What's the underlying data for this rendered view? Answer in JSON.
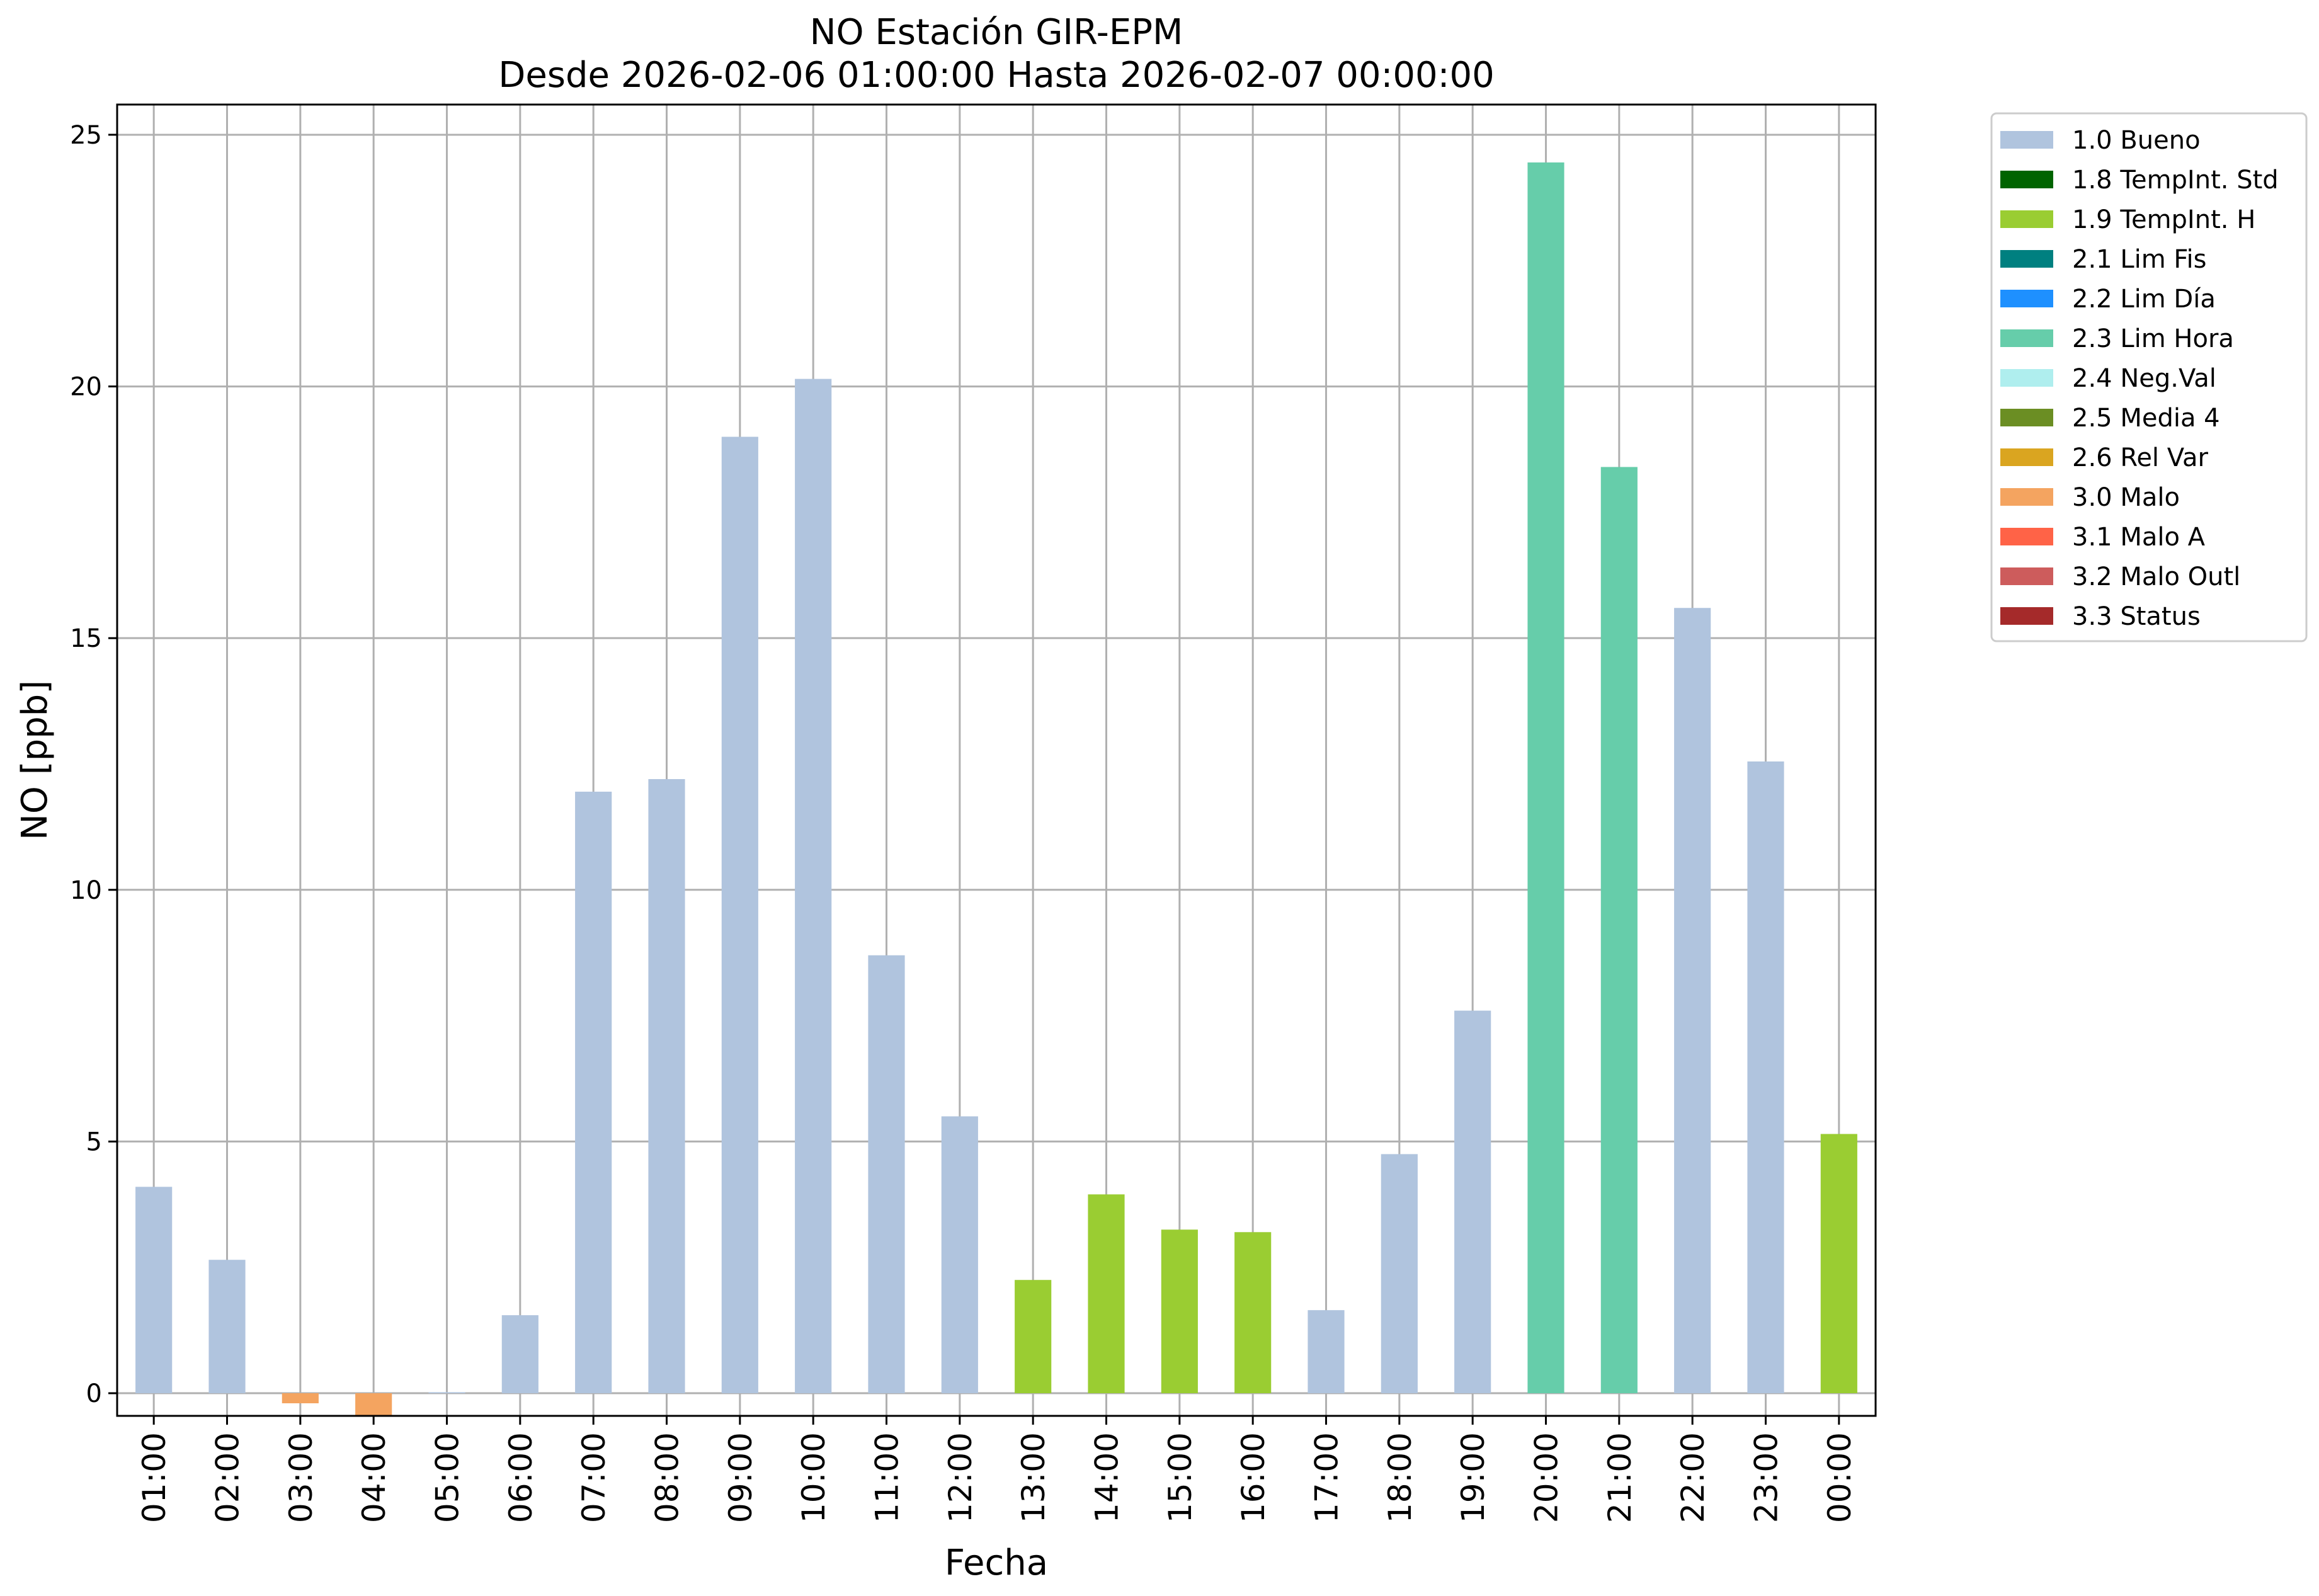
{
  "chart_data": {
    "type": "bar",
    "title": "NO Estación GIR-EPM",
    "subtitle": "Desde 2026-02-06 01:00:00 Hasta 2026-02-07 00:00:00",
    "xlabel": "Fecha",
    "ylabel": "NO [ppb]",
    "ylim": [
      -0.45,
      25.6
    ],
    "yticks": [
      0,
      5,
      10,
      15,
      20,
      25
    ],
    "grid": true,
    "legend_position": "outside-right-top",
    "categories": [
      "01:00",
      "02:00",
      "03:00",
      "04:00",
      "05:00",
      "06:00",
      "07:00",
      "08:00",
      "09:00",
      "10:00",
      "11:00",
      "12:00",
      "13:00",
      "14:00",
      "15:00",
      "16:00",
      "17:00",
      "18:00",
      "19:00",
      "20:00",
      "21:00",
      "22:00",
      "23:00",
      "00:00"
    ],
    "values": [
      4.1,
      2.65,
      -0.2,
      -0.45,
      0.02,
      1.55,
      11.95,
      12.2,
      19.0,
      20.15,
      8.7,
      5.5,
      2.25,
      3.95,
      3.25,
      3.2,
      1.65,
      4.75,
      7.6,
      24.45,
      18.4,
      15.6,
      12.55,
      5.15
    ],
    "flags": [
      "1.0 Bueno",
      "1.0 Bueno",
      "3.0 Malo",
      "3.0 Malo",
      "1.0 Bueno",
      "1.0 Bueno",
      "1.0 Bueno",
      "1.0 Bueno",
      "1.0 Bueno",
      "1.0 Bueno",
      "1.0 Bueno",
      "1.0 Bueno",
      "1.9 TempInt. H",
      "1.9 TempInt. H",
      "1.9 TempInt. H",
      "1.9 TempInt. H",
      "1.0 Bueno",
      "1.0 Bueno",
      "1.0 Bueno",
      "2.3 Lim Hora",
      "2.3 Lim Hora",
      "1.0 Bueno",
      "1.0 Bueno",
      "1.9 TempInt. H"
    ],
    "legend": [
      {
        "label": "1.0 Bueno",
        "color": "#b0c4de"
      },
      {
        "label": "1.8 TempInt. Std",
        "color": "#006400"
      },
      {
        "label": "1.9 TempInt. H",
        "color": "#9acd32"
      },
      {
        "label": "2.1 Lim Fis",
        "color": "#008080"
      },
      {
        "label": "2.2 Lim Día",
        "color": "#1e90ff"
      },
      {
        "label": "2.3 Lim Hora",
        "color": "#66cdaa"
      },
      {
        "label": "2.4 Neg.Val",
        "color": "#afeeee"
      },
      {
        "label": "2.5 Media 4",
        "color": "#6b8e23"
      },
      {
        "label": "2.6 Rel Var",
        "color": "#daa520"
      },
      {
        "label": "3.0 Malo",
        "color": "#f4a460"
      },
      {
        "label": "3.1 Malo A",
        "color": "#ff6347"
      },
      {
        "label": "3.2 Malo Outl",
        "color": "#cd5c5c"
      },
      {
        "label": "3.3 Status",
        "color": "#a52a2a"
      }
    ]
  }
}
